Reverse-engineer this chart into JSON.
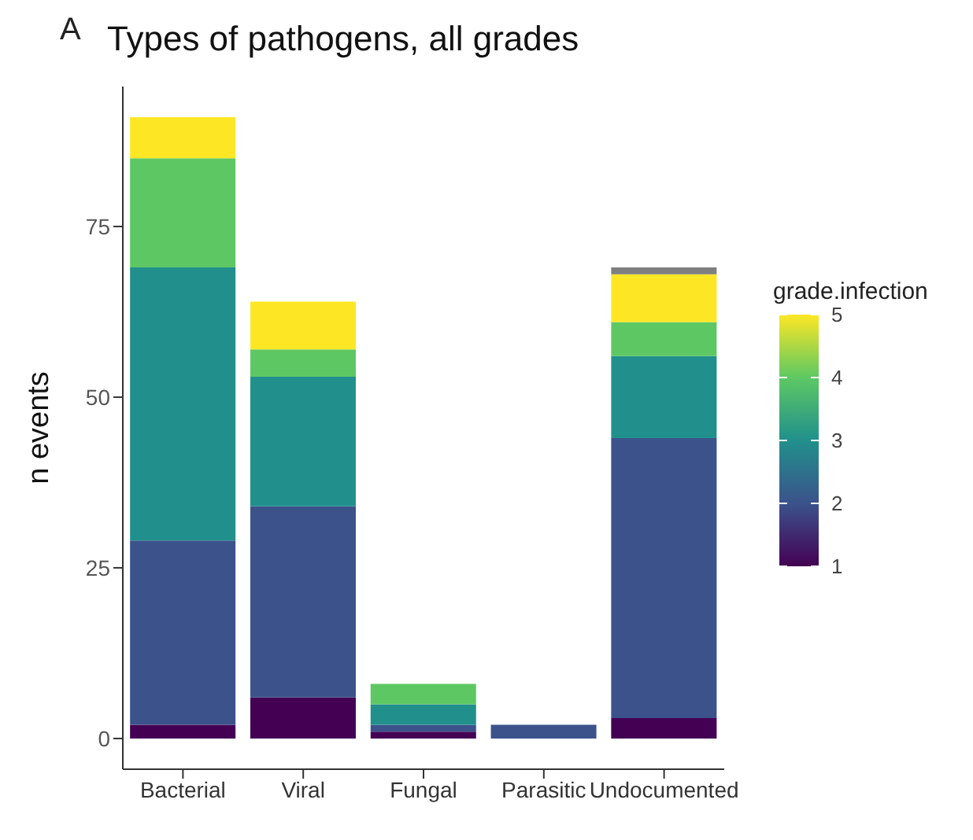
{
  "chart_data": {
    "type": "bar",
    "title": "Types of pathogens, all grades",
    "ylabel": "n events",
    "clabel": "grade.infection",
    "clim": [
      1,
      5
    ],
    "cticks": [
      1,
      2,
      3,
      4,
      5
    ],
    "annotations": [
      "A"
    ],
    "categories": [
      "Bacterial",
      "Viral",
      "Fungal",
      "Parasitic",
      "Undocumented"
    ],
    "stacked": true,
    "grid": false,
    "legend": false,
    "ylim": [
      -4.5,
      95.5
    ],
    "yticks": [
      0,
      25,
      50,
      75
    ],
    "series": [
      {
        "color": "#440154",
        "values": [
          2,
          6,
          1,
          null,
          3
        ]
      },
      {
        "color": "#3b528b",
        "values": [
          27,
          28,
          1,
          2,
          41
        ]
      },
      {
        "color": "#21908c",
        "values": [
          40,
          19,
          3,
          null,
          12
        ]
      },
      {
        "color": "#5dc863",
        "values": [
          16,
          4,
          3,
          null,
          5
        ]
      },
      {
        "color": "#fde725",
        "values": [
          6,
          7,
          null,
          null,
          7
        ]
      },
      {
        "color": "#7f7f7f",
        "values": [
          null,
          null,
          null,
          null,
          1
        ]
      }
    ]
  }
}
